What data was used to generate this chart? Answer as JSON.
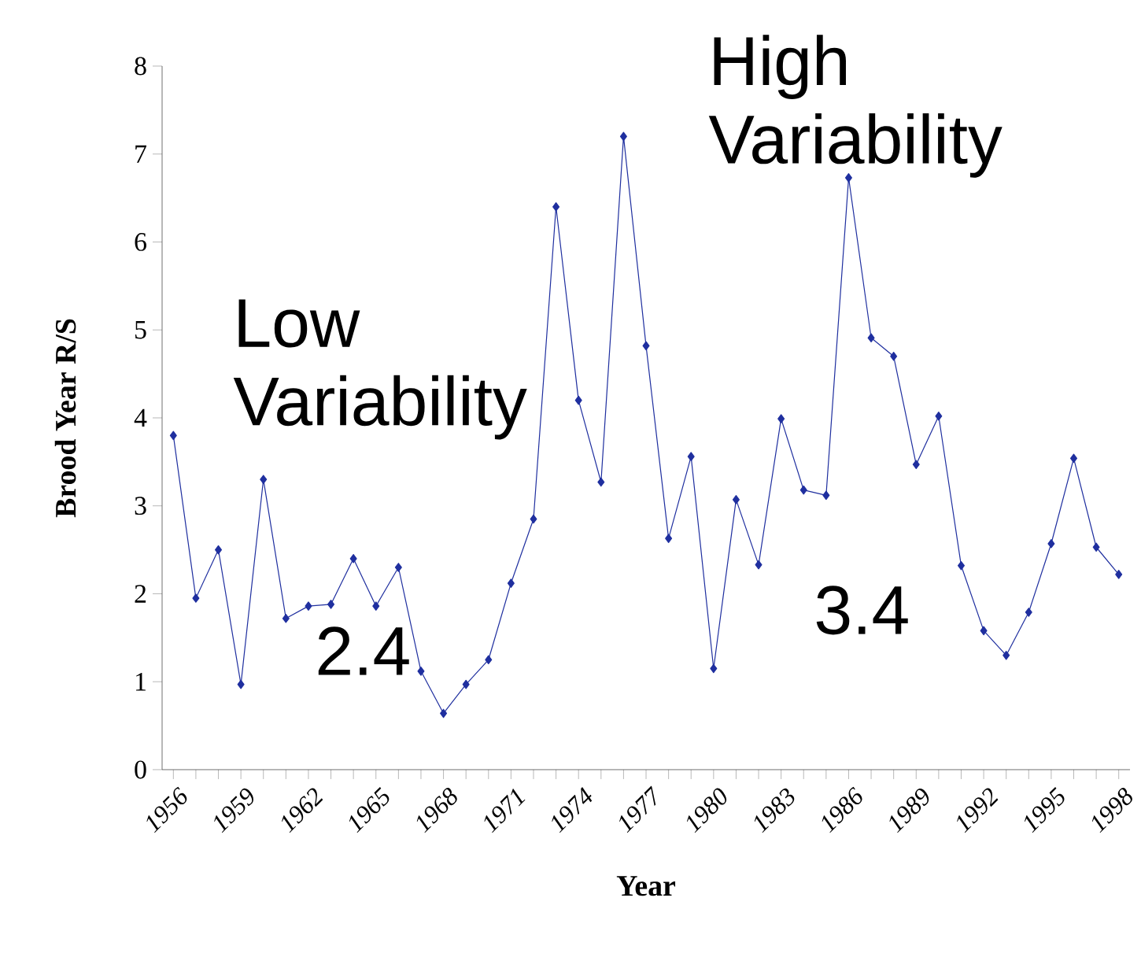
{
  "chart_data": {
    "type": "line",
    "xlabel": "Year",
    "ylabel": "Brood Year R/S",
    "categories": [
      "1956",
      null,
      null,
      "1959",
      null,
      null,
      "1962",
      null,
      null,
      "1965",
      null,
      null,
      "1968",
      null,
      null,
      "1971",
      null,
      null,
      "1974",
      null,
      null,
      "1977",
      null,
      null,
      "1980",
      null,
      null,
      "1983",
      null,
      null,
      "1986",
      null,
      null,
      "1989",
      null,
      null,
      "1992",
      null,
      null,
      "1995",
      null,
      null,
      "1998"
    ],
    "series": [
      {
        "color": "#1f2f9f",
        "values": [
          3.8,
          1.95,
          2.5,
          0.97,
          3.3,
          1.72,
          1.86,
          1.88,
          2.4,
          1.86,
          2.3,
          1.12,
          0.64,
          0.97,
          1.25,
          2.12,
          2.85,
          6.4,
          4.2,
          3.27,
          7.2,
          4.82,
          2.63,
          3.56,
          1.15,
          3.07,
          2.33,
          3.99,
          3.18,
          3.12,
          6.73,
          4.91,
          4.7,
          3.47,
          4.02,
          2.32,
          1.58,
          1.3,
          1.79,
          2.57,
          3.54,
          2.53,
          2.22
        ]
      }
    ],
    "ylim": [
      0,
      8
    ],
    "yticks": [
      0,
      1,
      2,
      3,
      4,
      5,
      6,
      7,
      8
    ],
    "marker": "diamond",
    "line_style": "solid",
    "grid": false,
    "annotations": [
      "Low Variability",
      "2.4",
      "High Variability",
      "3.4"
    ]
  }
}
